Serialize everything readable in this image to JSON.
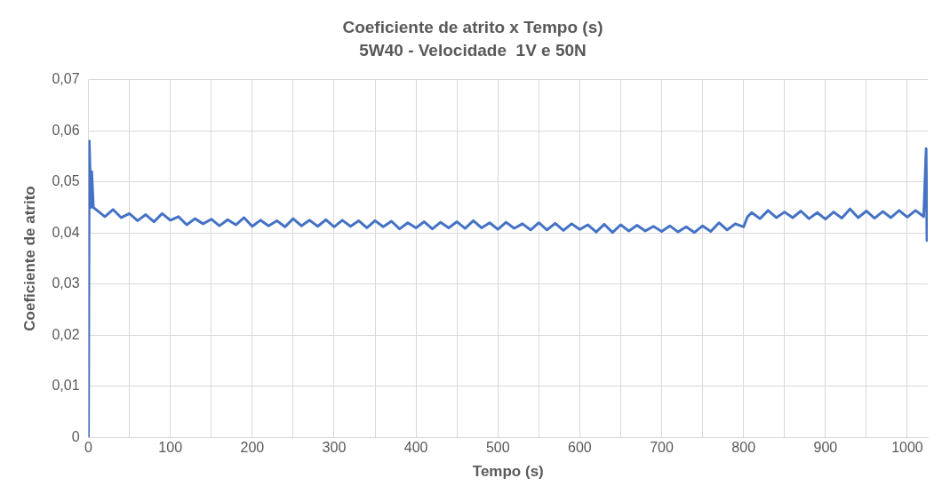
{
  "chart_data": {
    "type": "line",
    "title": "Coeficiente de atrito x Tempo (s)",
    "subtitle": "5W40 - Velocidade  1V e 50N",
    "xlabel": "Tempo (s)",
    "ylabel": "Coeficiente de atrito",
    "xlim": [
      0,
      1025
    ],
    "xticks": [
      0,
      {
        "value": 50,
        "label": null
      },
      100,
      {
        "value": 150,
        "label": null
      },
      200,
      {
        "value": 250,
        "label": null
      },
      300,
      {
        "value": 350,
        "label": null
      },
      400,
      {
        "value": 450,
        "label": null
      },
      500,
      {
        "value": 550,
        "label": null
      },
      600,
      {
        "value": 650,
        "label": null
      },
      700,
      {
        "value": 750,
        "label": null
      },
      800,
      {
        "value": 850,
        "label": null
      },
      900,
      {
        "value": 950,
        "label": null
      },
      1000
    ],
    "ylim": [
      0,
      0.07
    ],
    "yticks": [
      0,
      {
        "value": 0.01,
        "label": "0,01"
      },
      {
        "value": 0.02,
        "label": "0,02"
      },
      {
        "value": 0.03,
        "label": "0,03"
      },
      {
        "value": 0.04,
        "label": "0,04"
      },
      {
        "value": 0.05,
        "label": "0,05"
      },
      {
        "value": 0.06,
        "label": "0,06"
      },
      {
        "value": 0.07,
        "label": "0,07"
      }
    ],
    "grid": true,
    "legend": false,
    "marker": "none",
    "line_style": "solid",
    "series": [
      {
        "color": "#4472c4",
        "x": [
          0,
          1,
          3,
          4,
          6,
          10,
          20,
          30,
          40,
          50,
          60,
          70,
          80,
          90,
          100,
          110,
          120,
          130,
          140,
          150,
          160,
          170,
          180,
          190,
          200,
          210,
          220,
          230,
          240,
          250,
          260,
          270,
          280,
          290,
          300,
          310,
          320,
          330,
          340,
          350,
          360,
          370,
          380,
          390,
          400,
          410,
          420,
          430,
          440,
          450,
          460,
          470,
          480,
          490,
          500,
          510,
          520,
          530,
          540,
          550,
          560,
          570,
          580,
          590,
          600,
          610,
          620,
          630,
          640,
          650,
          660,
          670,
          680,
          690,
          700,
          710,
          720,
          730,
          740,
          750,
          760,
          770,
          780,
          790,
          800,
          805,
          810,
          820,
          830,
          840,
          850,
          860,
          870,
          880,
          890,
          900,
          910,
          920,
          930,
          940,
          950,
          960,
          970,
          980,
          990,
          1000,
          1010,
          1020,
          1023,
          1024,
          1025
        ],
        "values": [
          0,
          0.058,
          0.045,
          0.052,
          0.045,
          0.0445,
          0.0432,
          0.0446,
          0.043,
          0.0438,
          0.0424,
          0.0436,
          0.0422,
          0.0438,
          0.0425,
          0.0432,
          0.0416,
          0.0428,
          0.0418,
          0.0427,
          0.0414,
          0.0426,
          0.0416,
          0.043,
          0.0413,
          0.0425,
          0.0414,
          0.0424,
          0.0412,
          0.0428,
          0.0414,
          0.0425,
          0.0413,
          0.0426,
          0.0412,
          0.0425,
          0.0413,
          0.0424,
          0.041,
          0.0424,
          0.0412,
          0.0423,
          0.0408,
          0.042,
          0.041,
          0.0422,
          0.0408,
          0.0421,
          0.041,
          0.0422,
          0.0409,
          0.0424,
          0.041,
          0.042,
          0.0407,
          0.0421,
          0.0409,
          0.0418,
          0.0406,
          0.042,
          0.0406,
          0.0419,
          0.0405,
          0.0418,
          0.0407,
          0.0416,
          0.0402,
          0.0417,
          0.0401,
          0.0416,
          0.0404,
          0.0415,
          0.0404,
          0.0413,
          0.0403,
          0.0414,
          0.0402,
          0.0412,
          0.0401,
          0.0414,
          0.0403,
          0.042,
          0.0406,
          0.0418,
          0.0412,
          0.0432,
          0.044,
          0.0428,
          0.0444,
          0.043,
          0.0441,
          0.043,
          0.0443,
          0.0428,
          0.044,
          0.0427,
          0.0441,
          0.0429,
          0.0447,
          0.043,
          0.0443,
          0.0429,
          0.0442,
          0.043,
          0.0444,
          0.0431,
          0.0444,
          0.0432,
          0.0565,
          0.0385,
          0.044
        ]
      }
    ]
  }
}
